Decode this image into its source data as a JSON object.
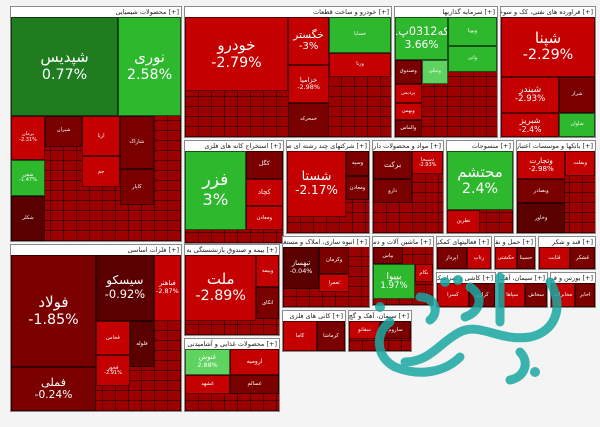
{
  "chart_data": {
    "type": "heatmap",
    "colors": {
      "strong_green": "#1f7d1f",
      "green": "#2eb82e",
      "light_green": "#5fd35f",
      "red": "#c40000",
      "dark_red": "#7a0000",
      "maroon": "#5a0000"
    },
    "sectors": [
      {
        "id": "chemical",
        "title": "محصولات شیمیایی",
        "tiles": [
          {
            "symbol": "شپدیس",
            "change": "0.77%",
            "tone": "strong_green"
          },
          {
            "symbol": "نوری",
            "change": "2.58%",
            "tone": "green"
          },
          {
            "symbol": "پرمان",
            "change": "-2.31%",
            "tone": "red"
          },
          {
            "symbol": "شیران",
            "change": "",
            "tone": "dark_red"
          },
          {
            "symbol": "اریا",
            "change": "",
            "tone": "red"
          },
          {
            "symbol": "شفن",
            "change": "-1.47%",
            "tone": "green"
          },
          {
            "symbol": "شاراک",
            "change": "",
            "tone": "dark_red"
          },
          {
            "symbol": "کاپار",
            "change": "",
            "tone": "dark_red"
          },
          {
            "symbol": "جم",
            "change": "",
            "tone": "red"
          },
          {
            "symbol": "شکلر",
            "change": "",
            "tone": "maroon"
          }
        ]
      },
      {
        "id": "auto",
        "title": "خودرو و ساخت قطعات",
        "tiles": [
          {
            "symbol": "خودرو",
            "change": "-2.79%",
            "tone": "red"
          },
          {
            "symbol": "خگستر",
            "change": "-3%",
            "tone": "red"
          },
          {
            "symbol": "خزامیا",
            "change": "-2.98%",
            "tone": "red"
          },
          {
            "symbol": "خساپا",
            "change": "",
            "tone": "green"
          },
          {
            "symbol": "ورنا",
            "change": "",
            "tone": "red"
          },
          {
            "symbol": "خمحرکه",
            "change": "",
            "tone": "dark_red"
          }
        ]
      },
      {
        "id": "investment",
        "title": "سرمایه گذاریها",
        "tiles": [
          {
            "symbol": "سکه0312پ01",
            "change": "3.66%",
            "tone": "green"
          },
          {
            "symbol": "وپویا",
            "change": "",
            "tone": "green"
          },
          {
            "symbol": "وصندوق",
            "change": "",
            "tone": "dark_red"
          },
          {
            "symbol": "پردیس",
            "change": "",
            "tone": "red"
          },
          {
            "symbol": "وبهمن",
            "change": "",
            "tone": "red"
          },
          {
            "symbol": "والماس",
            "change": "",
            "tone": "dark_red"
          },
          {
            "symbol": "ونیکی",
            "change": "",
            "tone": "light_green"
          },
          {
            "symbol": "واتی",
            "change": "",
            "tone": "green"
          }
        ]
      },
      {
        "id": "refinery",
        "title": "فراورده های نفتی، کک و سوخت",
        "tiles": [
          {
            "symbol": "شپنا",
            "change": "-2.29%",
            "tone": "red"
          },
          {
            "symbol": "شبندر",
            "change": "-2.93%",
            "tone": "red"
          },
          {
            "symbol": "شبریز",
            "change": "-2.4%",
            "tone": "red"
          },
          {
            "symbol": "شراز",
            "change": "",
            "tone": "dark_red"
          },
          {
            "symbol": "شاوان",
            "change": "",
            "tone": "green"
          }
        ]
      },
      {
        "id": "metal",
        "title": "فلزات اساسی",
        "tiles": [
          {
            "symbol": "فولاد",
            "change": "-1.85%",
            "tone": "dark_red"
          },
          {
            "symbol": "سیسکو",
            "change": "-0.92%",
            "tone": "maroon"
          },
          {
            "symbol": "فملی",
            "change": "-0.24%",
            "tone": "dark_red"
          },
          {
            "symbol": "فباهنر",
            "change": "-2.87%",
            "tone": "red"
          },
          {
            "symbol": "فخاس",
            "change": "",
            "tone": "red"
          },
          {
            "symbol": "فخوز",
            "change": "-2.91%",
            "tone": "red"
          },
          {
            "symbol": "فلوله",
            "change": "",
            "tone": "maroon"
          }
        ]
      },
      {
        "id": "extraction",
        "title": "استخراج کانه های فلزی",
        "tiles": [
          {
            "symbol": "فزر",
            "change": "3%",
            "tone": "green"
          },
          {
            "symbol": "کگل",
            "change": "",
            "tone": "dark_red"
          },
          {
            "symbol": "کچاد",
            "change": "",
            "tone": "red"
          },
          {
            "symbol": "ومعادن",
            "change": "",
            "tone": "red"
          }
        ]
      },
      {
        "id": "multi",
        "title": "شرکتهای چند رشته ای صنعتی",
        "tiles": [
          {
            "symbol": "شستا",
            "change": "-2.17%",
            "tone": "red"
          },
          {
            "symbol": "وسپه",
            "change": "",
            "tone": "dark_red"
          },
          {
            "symbol": "ومعادن",
            "change": "",
            "tone": "dark_red"
          }
        ]
      },
      {
        "id": "pharma",
        "title": "مواد و محصولات دارویی",
        "tiles": [
          {
            "symbol": "برکت",
            "change": "",
            "tone": "dark_red"
          },
          {
            "symbol": "دسبحا",
            "change": "-2.93%",
            "tone": "red"
          },
          {
            "symbol": "دارو",
            "change": "",
            "tone": "dark_red"
          }
        ]
      },
      {
        "id": "textile",
        "title": "منسوجات",
        "tiles": [
          {
            "symbol": "محتشم",
            "change": "2.4%",
            "tone": "green"
          },
          {
            "symbol": "نطرین",
            "change": "",
            "tone": "red"
          }
        ]
      },
      {
        "id": "bank",
        "title": "بانکها و موسسات اعتباری",
        "tiles": [
          {
            "symbol": "وتجارت",
            "change": "-2.98%",
            "tone": "red"
          },
          {
            "symbol": "وبملت",
            "change": "",
            "tone": "red"
          },
          {
            "symbol": "وبصادر",
            "change": "",
            "tone": "dark_red"
          },
          {
            "symbol": "وخاور",
            "change": "",
            "tone": "maroon"
          }
        ]
      },
      {
        "id": "cement",
        "title": "سیمان، آهک و گچ",
        "tiles": [
          {
            "symbol": "سفانو",
            "change": "",
            "tone": "red"
          },
          {
            "symbol": "ساروم",
            "change": "",
            "tone": "dark_red"
          }
        ]
      },
      {
        "id": "fund",
        "title": "بیمه و صندوق بازنشستگی به جز تامین",
        "tiles": [
          {
            "symbol": "ملت",
            "change": "-2.89%",
            "tone": "red"
          },
          {
            "symbol": "وبیمه",
            "change": "",
            "tone": "red"
          },
          {
            "symbol": "اتکای",
            "change": "",
            "tone": "dark_red"
          }
        ]
      },
      {
        "id": "construction",
        "title": "انبوه سازی، املاک و مستغلات",
        "tiles": [
          {
            "symbol": "ثبهساز",
            "change": "-0.04%",
            "tone": "maroon"
          },
          {
            "symbol": "وکرمان",
            "change": "",
            "tone": "dark_red"
          },
          {
            "symbol": "ثعمرا",
            "change": "",
            "tone": "red"
          }
        ]
      },
      {
        "id": "power",
        "title": "ماشین آلات و دستگاه",
        "tiles": [
          {
            "symbol": "بپاس",
            "change": "",
            "tone": "dark_red"
          },
          {
            "symbol": "بپیوا",
            "change": "1.97%",
            "tone": "green"
          },
          {
            "symbol": "بکام",
            "change": "",
            "tone": "red"
          }
        ]
      },
      {
        "id": "it",
        "title": "فعالیتهای کمکی به نها",
        "tiles": [
          {
            "symbol": "اپرداز",
            "change": "",
            "tone": "dark_red"
          },
          {
            "symbol": "رتاپ",
            "change": "",
            "tone": "red"
          }
        ]
      },
      {
        "id": "transport",
        "title": "حمل و نقل",
        "tiles": [
          {
            "symbol": "حکشتی",
            "change": "",
            "tone": "red"
          },
          {
            "symbol": "حسینا",
            "change": "",
            "tone": "dark_red"
          }
        ]
      },
      {
        "id": "sugar",
        "title": "قند و شکر",
        "tiles": [
          {
            "symbol": "قثابت",
            "change": "",
            "tone": "red"
          },
          {
            "symbol": "قشکر",
            "change": "",
            "tone": "dark_red"
          }
        ]
      },
      {
        "id": "tile_ceramic",
        "title": "کاشی و سرامیک",
        "tiles": [
          {
            "symbol": "کسرا",
            "change": "",
            "tone": "red"
          },
          {
            "symbol": "کرازی",
            "change": "",
            "tone": "dark_red"
          }
        ]
      },
      {
        "id": "food",
        "title": "محصولات غذایی و آشامیدنی به جز",
        "tiles": [
          {
            "symbol": "غنوش",
            "change": "2.88%",
            "tone": "light_green"
          },
          {
            "symbol": "ارومیه",
            "change": "",
            "tone": "red"
          },
          {
            "symbol": "غشهد",
            "change": "",
            "tone": "red"
          },
          {
            "symbol": "غسالم",
            "change": "",
            "tone": "dark_red"
          }
        ]
      },
      {
        "id": "metal_ore",
        "title": "کانی های فلزی",
        "tiles": [
          {
            "symbol": "کاما",
            "change": "",
            "tone": "red"
          },
          {
            "symbol": "کرماشا",
            "change": "",
            "tone": "dark_red"
          }
        ]
      },
      {
        "id": "cement2",
        "title": "سیمان، آهک و گچ",
        "tiles": [
          {
            "symbol": "سپاها",
            "change": "",
            "tone": "red"
          },
          {
            "symbol": "سخاش",
            "change": "",
            "tone": "dark_red"
          }
        ]
      },
      {
        "id": "market",
        "title": "بورس و فرابورس",
        "tiles": [
          {
            "symbol": "مخابرات",
            "change": "",
            "tone": "red"
          },
          {
            "symbol": "اخابر",
            "change": "",
            "tone": "dark_red"
          }
        ]
      }
    ]
  }
}
